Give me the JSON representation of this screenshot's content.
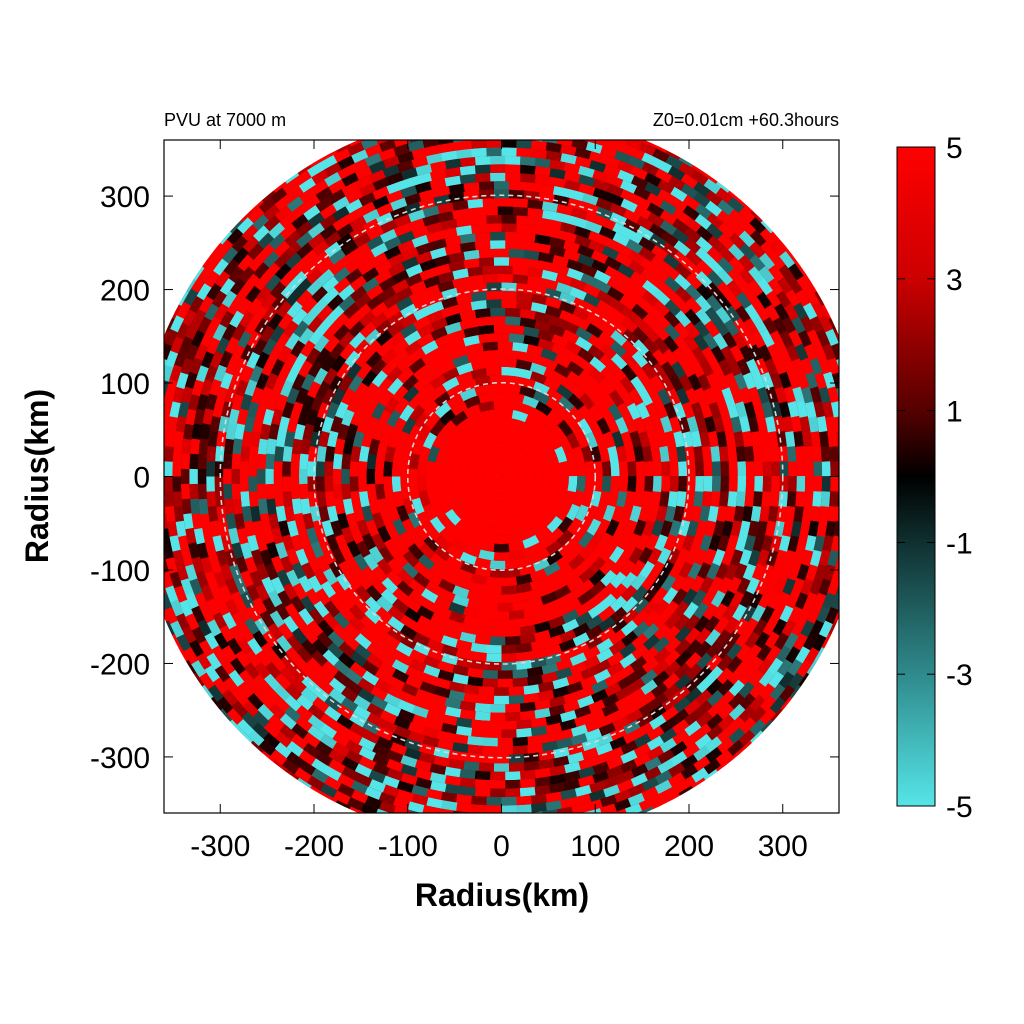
{
  "chart_data": {
    "type": "heatmap",
    "title_left": "PVU at  7000 m",
    "title_right": "Z0=0.01cm  +60.3hours",
    "xlabel": "Radius(km)",
    "ylabel": "Radius(km)",
    "xlim": [
      -360,
      360
    ],
    "ylim": [
      -360,
      360
    ],
    "xticks": [
      -300,
      -200,
      -100,
      0,
      100,
      200,
      300
    ],
    "yticks": [
      300,
      200,
      100,
      0,
      -100,
      -200,
      -300
    ],
    "domain_radius_km": 390,
    "reference_circles_km": [
      100,
      200,
      300
    ],
    "colorbar": {
      "min": -5,
      "max": 5,
      "ticks": [
        5,
        3,
        1,
        -1,
        -3,
        -5
      ],
      "colors": {
        "high": "#ff0000",
        "mid": "#000000",
        "low": "#55e5e8"
      }
    },
    "field_description_values": {
      "core_radius_km": 70,
      "core_value": 5
    }
  }
}
